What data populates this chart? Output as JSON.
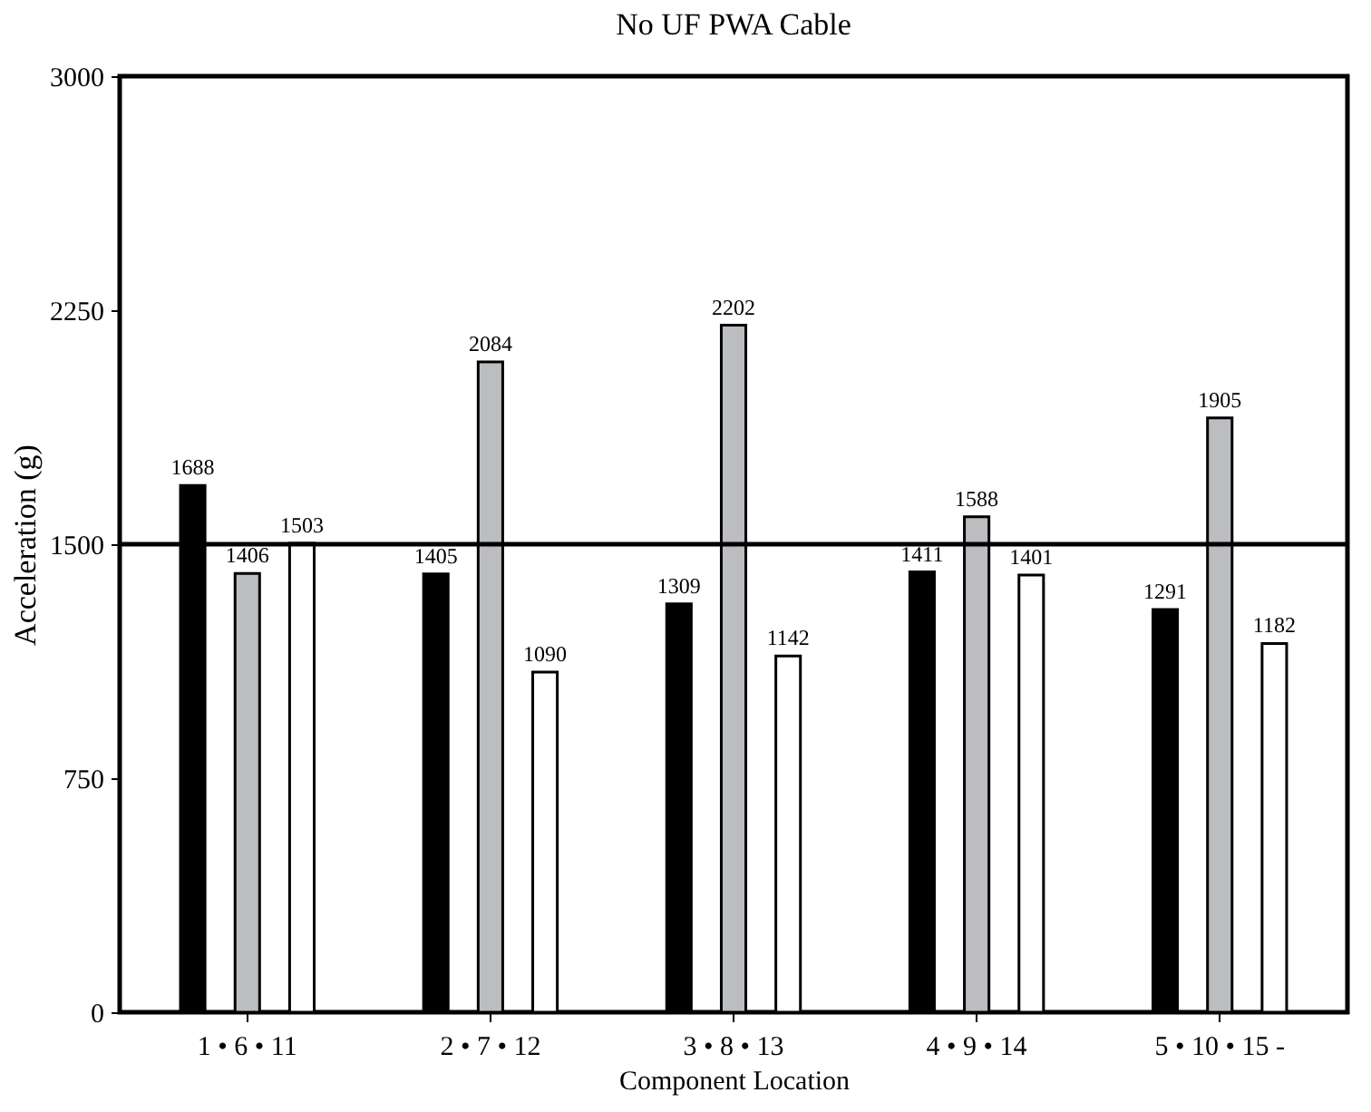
{
  "chart_data": {
    "type": "bar",
    "title": "No UF PWA Cable",
    "xlabel": "Component Location",
    "ylabel": "Acceleration (g)",
    "categories": [
      "1 • 6 • 11",
      "2 • 7 • 12",
      "3 • 8 • 13",
      "4 • 9 • 14",
      "5 • 10 • 15 -"
    ],
    "series": [
      {
        "color": "#000000",
        "values": [
          1688,
          1405,
          1309,
          1411,
          1291
        ]
      },
      {
        "color": "#bcbdc0",
        "values": [
          1406,
          2084,
          2202,
          1588,
          1905
        ]
      },
      {
        "color": "#ffffff",
        "values": [
          1503,
          1090,
          1142,
          1401,
          1182
        ]
      }
    ],
    "ylim": [
      0,
      3000
    ],
    "yticks": [
      0,
      750,
      1500,
      2250,
      3000
    ],
    "grid": false,
    "legend": false,
    "data_labels": true,
    "ref_lines": [
      {
        "axis": "y",
        "value": 1500,
        "color": "#000000"
      }
    ]
  }
}
